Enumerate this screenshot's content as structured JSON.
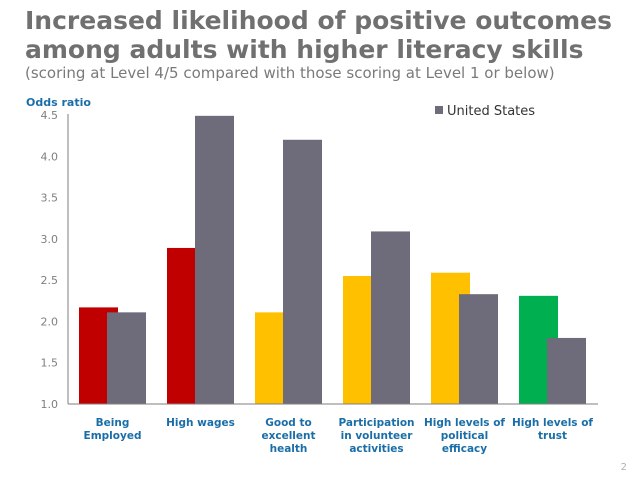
{
  "title": "Increased likelihood of positive outcomes among adults with higher literacy skills",
  "subtitle": "(scoring at Level 4/5 compared with those scoring at Level 1 or below)",
  "page_number": "2",
  "chart_data": {
    "type": "bar",
    "title": "Increased likelihood of positive outcomes among adults with higher literacy skills",
    "ylabel": "Odds ratio",
    "xlabel": "",
    "ylim": [
      1.0,
      4.5
    ],
    "yticks": [
      "1.0",
      "1.5",
      "2.0",
      "2.5",
      "3.0",
      "3.5",
      "4.0",
      "4.5"
    ],
    "grid": false,
    "legend_position": "top-right",
    "categories": [
      [
        "Being",
        "Employed"
      ],
      [
        "High wages"
      ],
      [
        "Good to",
        "excellent",
        "health"
      ],
      [
        "Participation",
        "in volunteer",
        "activities"
      ],
      [
        "High levels of",
        "political",
        "efficacy"
      ],
      [
        "High levels of",
        "trust"
      ]
    ],
    "series": [
      {
        "values": [
          2.17,
          2.89,
          2.11,
          2.55,
          2.59,
          2.31
        ],
        "colors": [
          "#c00000",
          "#c00000",
          "#ffc000",
          "#ffc000",
          "#ffc000",
          "#00b050"
        ]
      },
      {
        "name": "United States",
        "values": [
          2.11,
          4.49,
          4.2,
          3.09,
          2.33,
          1.8
        ],
        "color": "#6e6b7b"
      }
    ]
  }
}
